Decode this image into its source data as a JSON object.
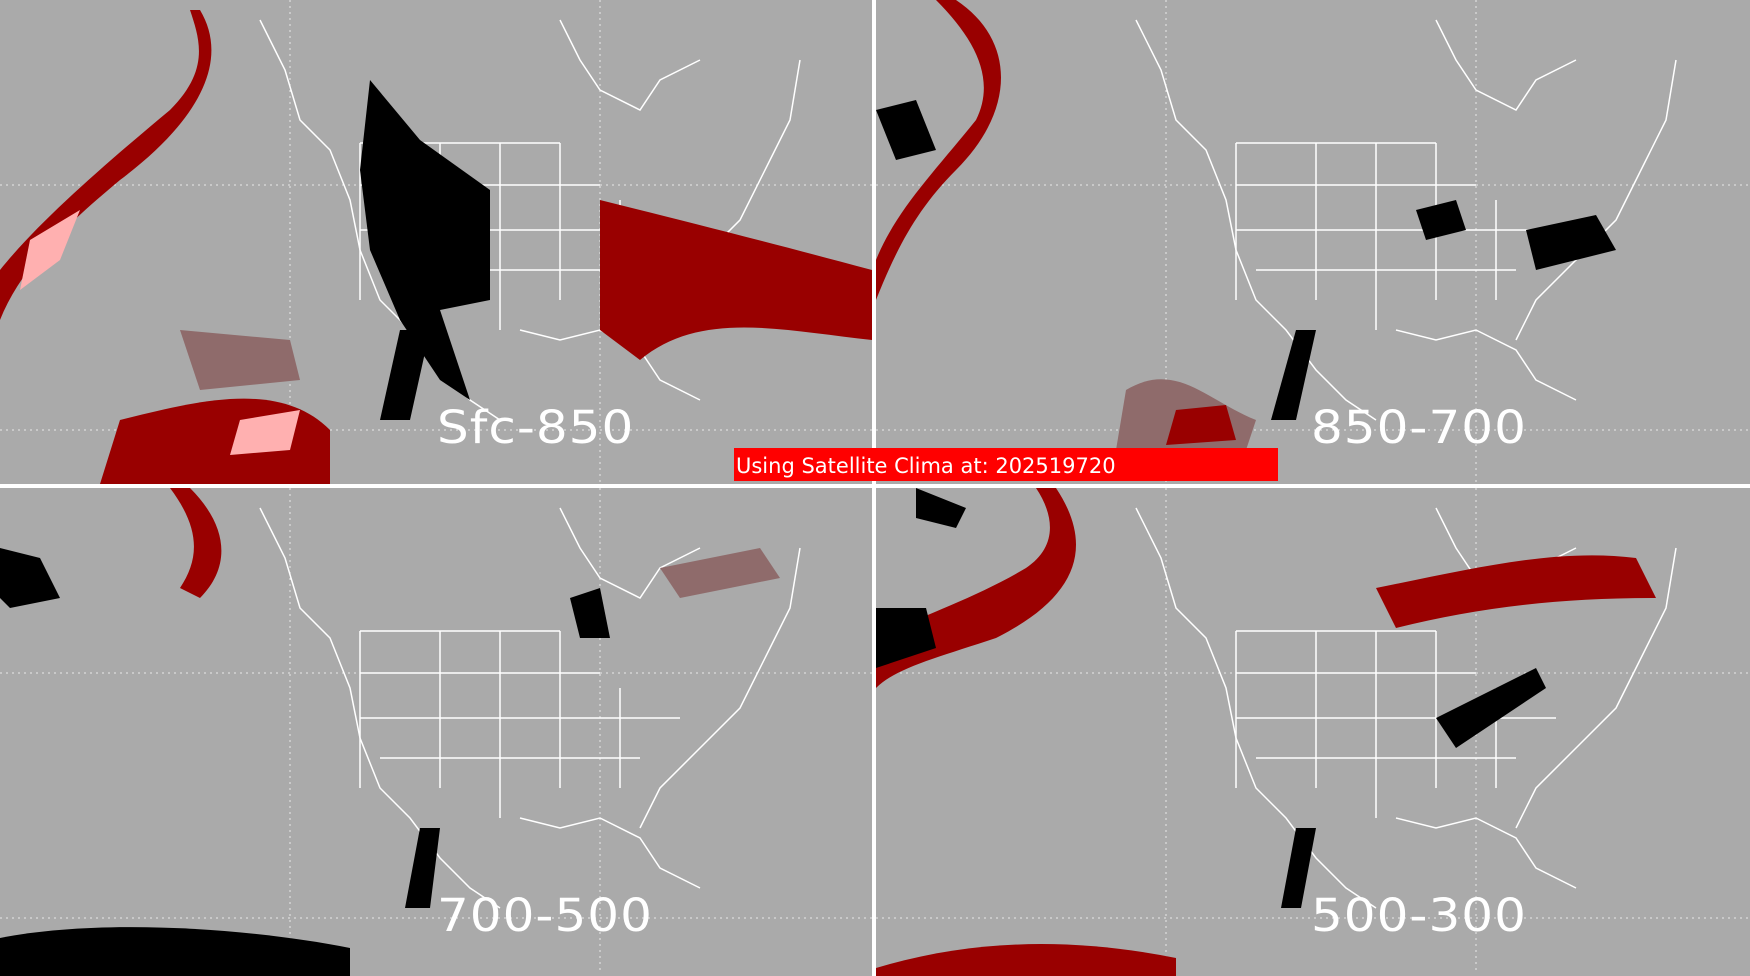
{
  "panels": [
    {
      "label": "Sfc-850"
    },
    {
      "label": "850-700"
    },
    {
      "label": "700-500"
    },
    {
      "label": "500-300"
    }
  ],
  "banner": {
    "text": "Using Satellite Clima at: 202519720"
  },
  "colors": {
    "background": "#aaaaaa",
    "dark_red": "#990000",
    "muted_red": "#8f6b6b",
    "pink": "#ffb0b0",
    "black": "#000000",
    "outline": "#ffffff",
    "banner": "#ff0000"
  }
}
